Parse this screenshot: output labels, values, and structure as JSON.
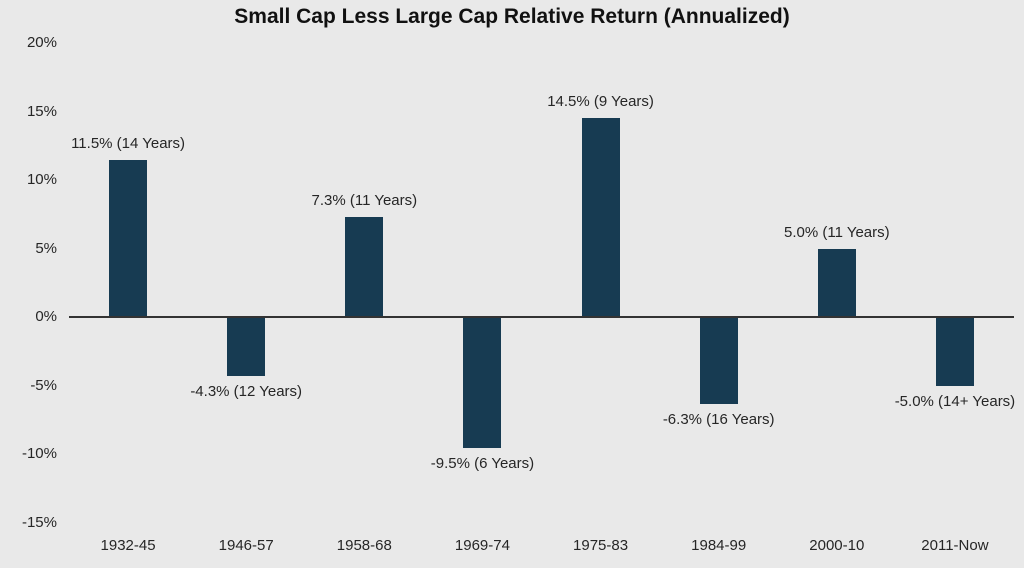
{
  "chart_data": {
    "type": "bar",
    "title": "Small Cap Less Large Cap Relative Return (Annualized)",
    "categories": [
      "1932-45",
      "1946-57",
      "1958-68",
      "1969-74",
      "1975-83",
      "1984-99",
      "2000-10",
      "2011-Now"
    ],
    "values": [
      11.5,
      -4.3,
      7.3,
      -9.5,
      14.5,
      -6.3,
      5.0,
      -5.0
    ],
    "bar_labels": [
      "11.5% (14 Years)",
      "-4.3% (12 Years)",
      "7.3% (11 Years)",
      "-9.5% (6 Years)",
      "14.5% (9 Years)",
      "-6.3% (16 Years)",
      "5.0% (11 Years)",
      "-5.0% (14+ Years)"
    ],
    "xlabel": "",
    "ylabel": "",
    "ylim": [
      -15,
      20
    ],
    "ytick_step": 5,
    "ytick_labels": [
      "20%",
      "15%",
      "10%",
      "5%",
      "0%",
      "-5%",
      "-10%",
      "-15%"
    ],
    "grid": false,
    "legend": null,
    "colors": {
      "bar": "#173b52",
      "background": "#e9e9e9",
      "axis_line": "#333333",
      "text": "#262626",
      "title_text": "#111111"
    }
  }
}
